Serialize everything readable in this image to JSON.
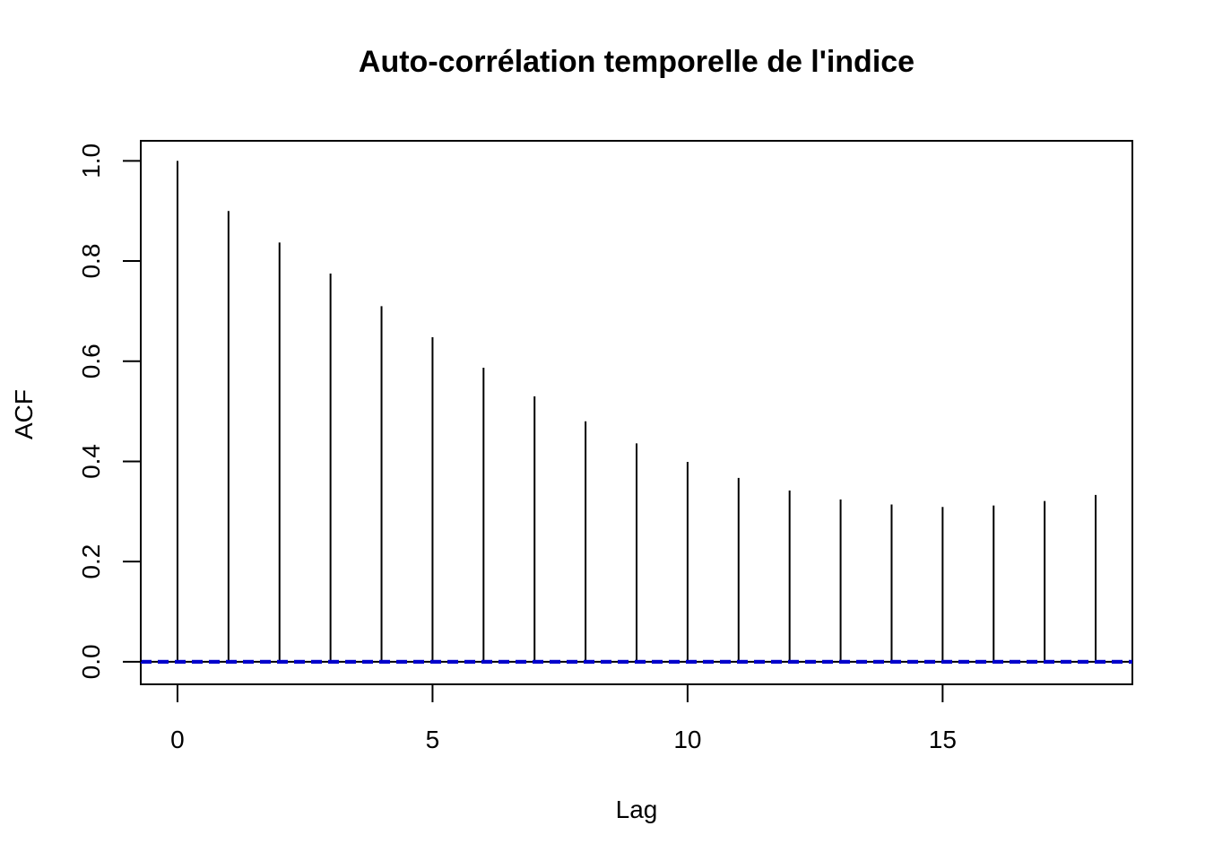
{
  "chart_data": {
    "type": "bar",
    "subtype": "acf-stem",
    "title": "Auto-corrélation temporelle de l'indice",
    "xlabel": "Lag",
    "ylabel": "ACF",
    "x": [
      0,
      1,
      2,
      3,
      4,
      5,
      6,
      7,
      8,
      9,
      10,
      11,
      12,
      13,
      14,
      15,
      16,
      17,
      18
    ],
    "values": [
      1.0,
      0.9,
      0.837,
      0.775,
      0.71,
      0.648,
      0.587,
      0.53,
      0.48,
      0.436,
      0.399,
      0.367,
      0.342,
      0.324,
      0.314,
      0.309,
      0.312,
      0.321,
      0.333
    ],
    "xlim": [
      -0.72,
      18.72
    ],
    "ylim": [
      -0.045,
      1.04
    ],
    "x_ticks": [
      0,
      5,
      10,
      15
    ],
    "x_tick_labels": [
      "0",
      "5",
      "10",
      "15"
    ],
    "y_ticks": [
      0.0,
      0.2,
      0.4,
      0.6,
      0.8,
      1.0
    ],
    "y_tick_labels": [
      "0.0",
      "0.2",
      "0.4",
      "0.6",
      "0.8",
      "1.0"
    ],
    "confidence_bounds": [
      0.0,
      0.0
    ],
    "grid": false,
    "colors": {
      "stems": "#000000",
      "confidence": "#0000cc",
      "zero_line": "#000000"
    }
  }
}
